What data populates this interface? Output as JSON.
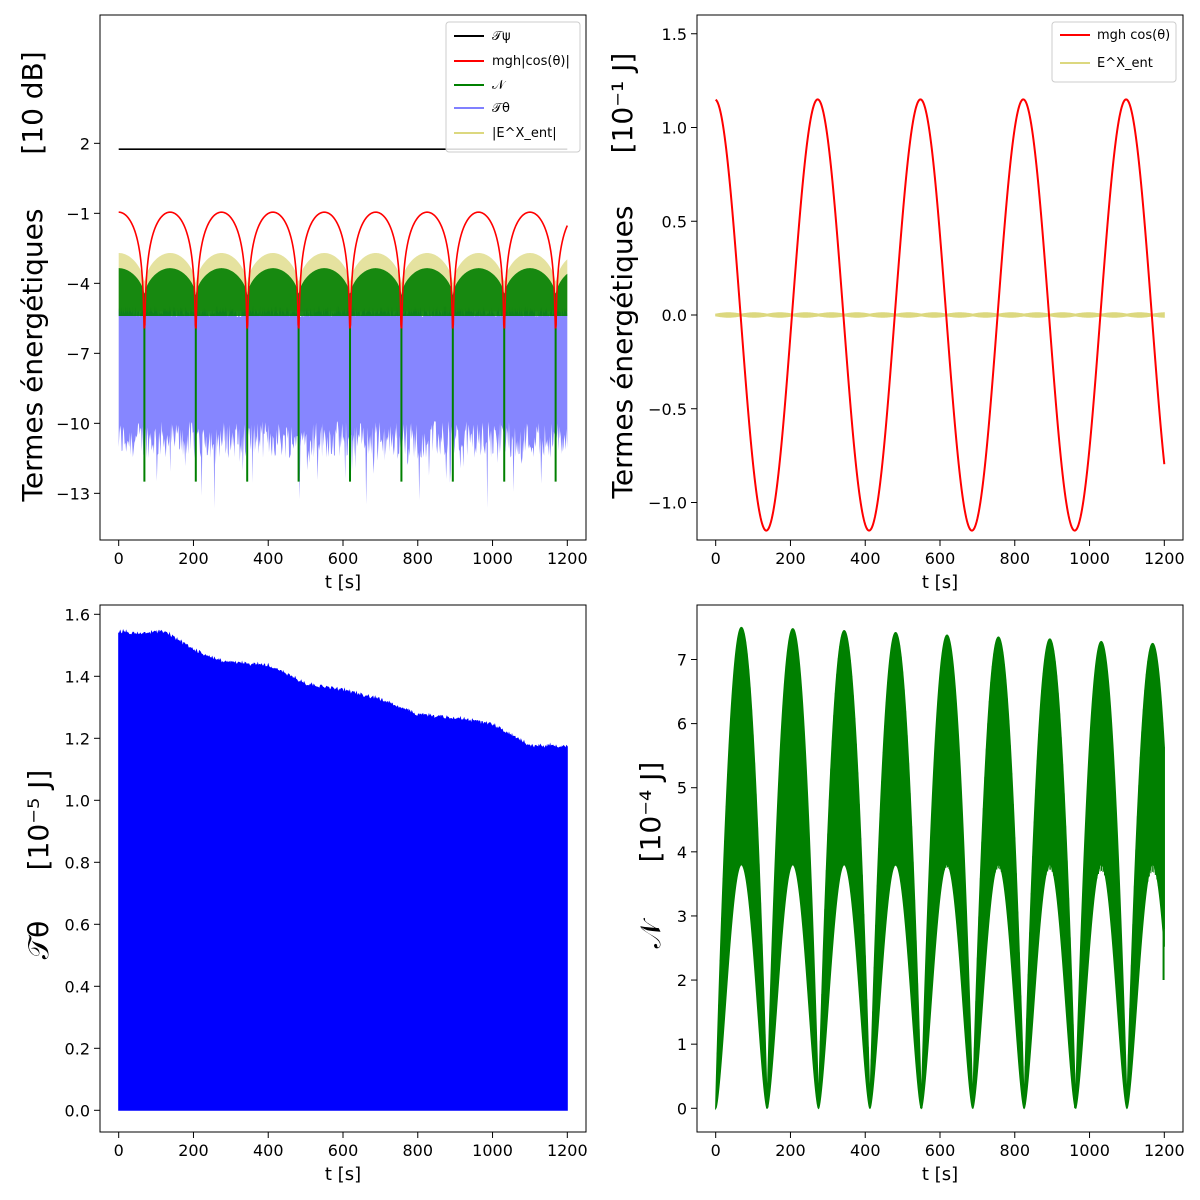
{
  "chart_data": [
    {
      "id": "tl",
      "type": "line",
      "ylabel": "Termes énergétiques",
      "yunit": "[10 dB]",
      "xlabel": "t  [s]",
      "xlim": [
        -50,
        1250
      ],
      "ylim": [
        -15,
        7.5
      ],
      "xticks": [
        0,
        200,
        400,
        600,
        800,
        1000,
        1200
      ],
      "yticks": [
        2,
        -1,
        -4,
        -7,
        -10,
        -13
      ],
      "legend_position": "upper right",
      "series": [
        {
          "name": "𝒯ψ",
          "color": "#000000",
          "style": "constant",
          "value": 1.75
        },
        {
          "name": "mgh|cos(θ)|",
          "color": "#ff0000",
          "style": "abs_cos_db",
          "period": 275,
          "max": -0.95,
          "min": -5.9
        },
        {
          "name": "𝒩",
          "color": "#008000",
          "style": "band_arches",
          "top_max": -3.35,
          "top_min": -4.6,
          "floor": -5.4
        },
        {
          "name": "𝒯θ",
          "color": "#8080ff",
          "style": "noisy_band",
          "top": -5.2,
          "bottom": -11.5
        },
        {
          "name": "|E^X_ent|",
          "color": "#dcd87f",
          "style": "band_arches",
          "top_max": -2.7,
          "top_min": -4.1,
          "floor": -5.2
        }
      ]
    },
    {
      "id": "tr",
      "type": "line",
      "ylabel": "Termes énergétiques",
      "yunit": "[10⁻¹ J]",
      "xlabel": "t  [s]",
      "xlim": [
        -50,
        1250
      ],
      "ylim": [
        -1.2,
        1.6
      ],
      "xticks": [
        0,
        200,
        400,
        600,
        800,
        1000,
        1200
      ],
      "yticks": [
        1.5,
        1.0,
        0.5,
        0.0,
        -0.5,
        -1.0
      ],
      "legend_position": "upper right",
      "series": [
        {
          "name": "mgh cos(θ)",
          "color": "#ff0000",
          "style": "cosine",
          "amplitude": 1.15,
          "period": 275
        },
        {
          "name": "E^X_ent",
          "color": "#dcd87f",
          "style": "small_band",
          "amplitude": 0.012
        }
      ]
    },
    {
      "id": "bl",
      "type": "area",
      "ylabel": "𝒯θ",
      "yunit": "[10⁻⁵ J]",
      "xlabel": "t  [s]",
      "xlim": [
        -50,
        1250
      ],
      "ylim": [
        -0.07,
        1.63
      ],
      "xticks": [
        0,
        200,
        400,
        600,
        800,
        1000,
        1200
      ],
      "yticks": [
        0.0,
        0.2,
        0.4,
        0.6,
        0.8,
        1.0,
        1.2,
        1.4,
        1.6
      ],
      "series": [
        {
          "name": "𝒯θ",
          "color": "#0000ff",
          "envelope_x": [
            0,
            50,
            120,
            200,
            280,
            400,
            500,
            600,
            700,
            800,
            900,
            1000,
            1100,
            1200
          ],
          "envelope_y": [
            1.55,
            1.54,
            1.55,
            1.49,
            1.45,
            1.44,
            1.38,
            1.36,
            1.33,
            1.28,
            1.27,
            1.25,
            1.18,
            1.18
          ]
        }
      ]
    },
    {
      "id": "br",
      "type": "area",
      "ylabel": "𝒩",
      "yunit": "[10⁻⁴ J]",
      "xlabel": "t  [s]",
      "xlim": [
        -50,
        1250
      ],
      "ylim": [
        -0.37,
        7.85
      ],
      "xticks": [
        0,
        200,
        400,
        600,
        800,
        1000,
        1200
      ],
      "yticks": [
        0,
        1,
        2,
        3,
        4,
        5,
        6,
        7
      ],
      "series": [
        {
          "name": "𝒩",
          "color": "#008000",
          "period": 137.5,
          "peak_values": [
            7.5,
            7.48,
            7.45,
            7.42,
            7.38,
            7.35,
            7.32,
            7.28,
            7.25
          ],
          "inner_dip": 4.4,
          "end_value": 2.0
        }
      ]
    }
  ]
}
